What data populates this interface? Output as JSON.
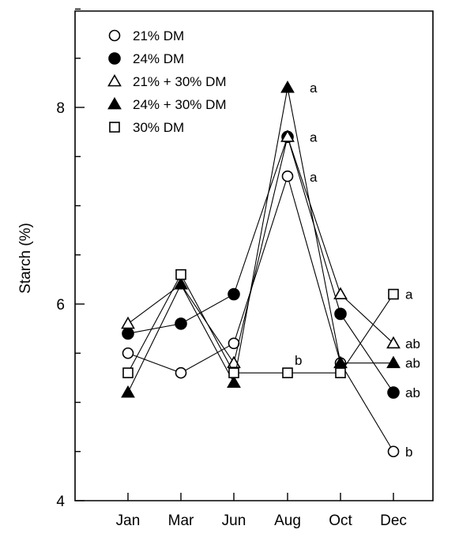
{
  "chart_data": {
    "type": "line",
    "title": "",
    "xlabel": "",
    "ylabel": "Starch (%)",
    "ylim": [
      4,
      9
    ],
    "yticks": [
      4,
      6,
      8
    ],
    "categories": [
      "Jan",
      "Mar",
      "Jun",
      "Aug",
      "Oct",
      "Dec"
    ],
    "grid": false,
    "legend_position": "top-left",
    "series": [
      {
        "name": "21% DM",
        "marker": "circle-open",
        "values": [
          5.5,
          5.3,
          5.6,
          7.3,
          5.4,
          4.5
        ],
        "end_label": "b"
      },
      {
        "name": "24% DM",
        "marker": "circle-filled",
        "values": [
          5.7,
          5.8,
          6.1,
          7.7,
          5.9,
          5.1
        ],
        "end_label": "ab"
      },
      {
        "name": "21% + 30% DM",
        "marker": "triangle-open",
        "values": [
          5.8,
          6.2,
          5.4,
          7.7,
          6.1,
          5.6
        ],
        "end_label": "ab"
      },
      {
        "name": "24% + 30% DM",
        "marker": "triangle-filled",
        "values": [
          5.1,
          6.2,
          5.2,
          8.2,
          5.4,
          5.4
        ],
        "end_label": "ab"
      },
      {
        "name": "30% DM",
        "marker": "square-open",
        "values": [
          5.3,
          6.3,
          5.3,
          5.3,
          5.3,
          6.1
        ],
        "end_label": "a"
      }
    ],
    "annotations": [
      {
        "text": "a",
        "series": "24% + 30% DM",
        "category": "Aug"
      },
      {
        "text": "a",
        "series": "24% DM",
        "category": "Aug"
      },
      {
        "text": "a",
        "series": "21% DM",
        "category": "Aug"
      },
      {
        "text": "b",
        "series": "30% DM",
        "category": "Aug"
      }
    ]
  }
}
